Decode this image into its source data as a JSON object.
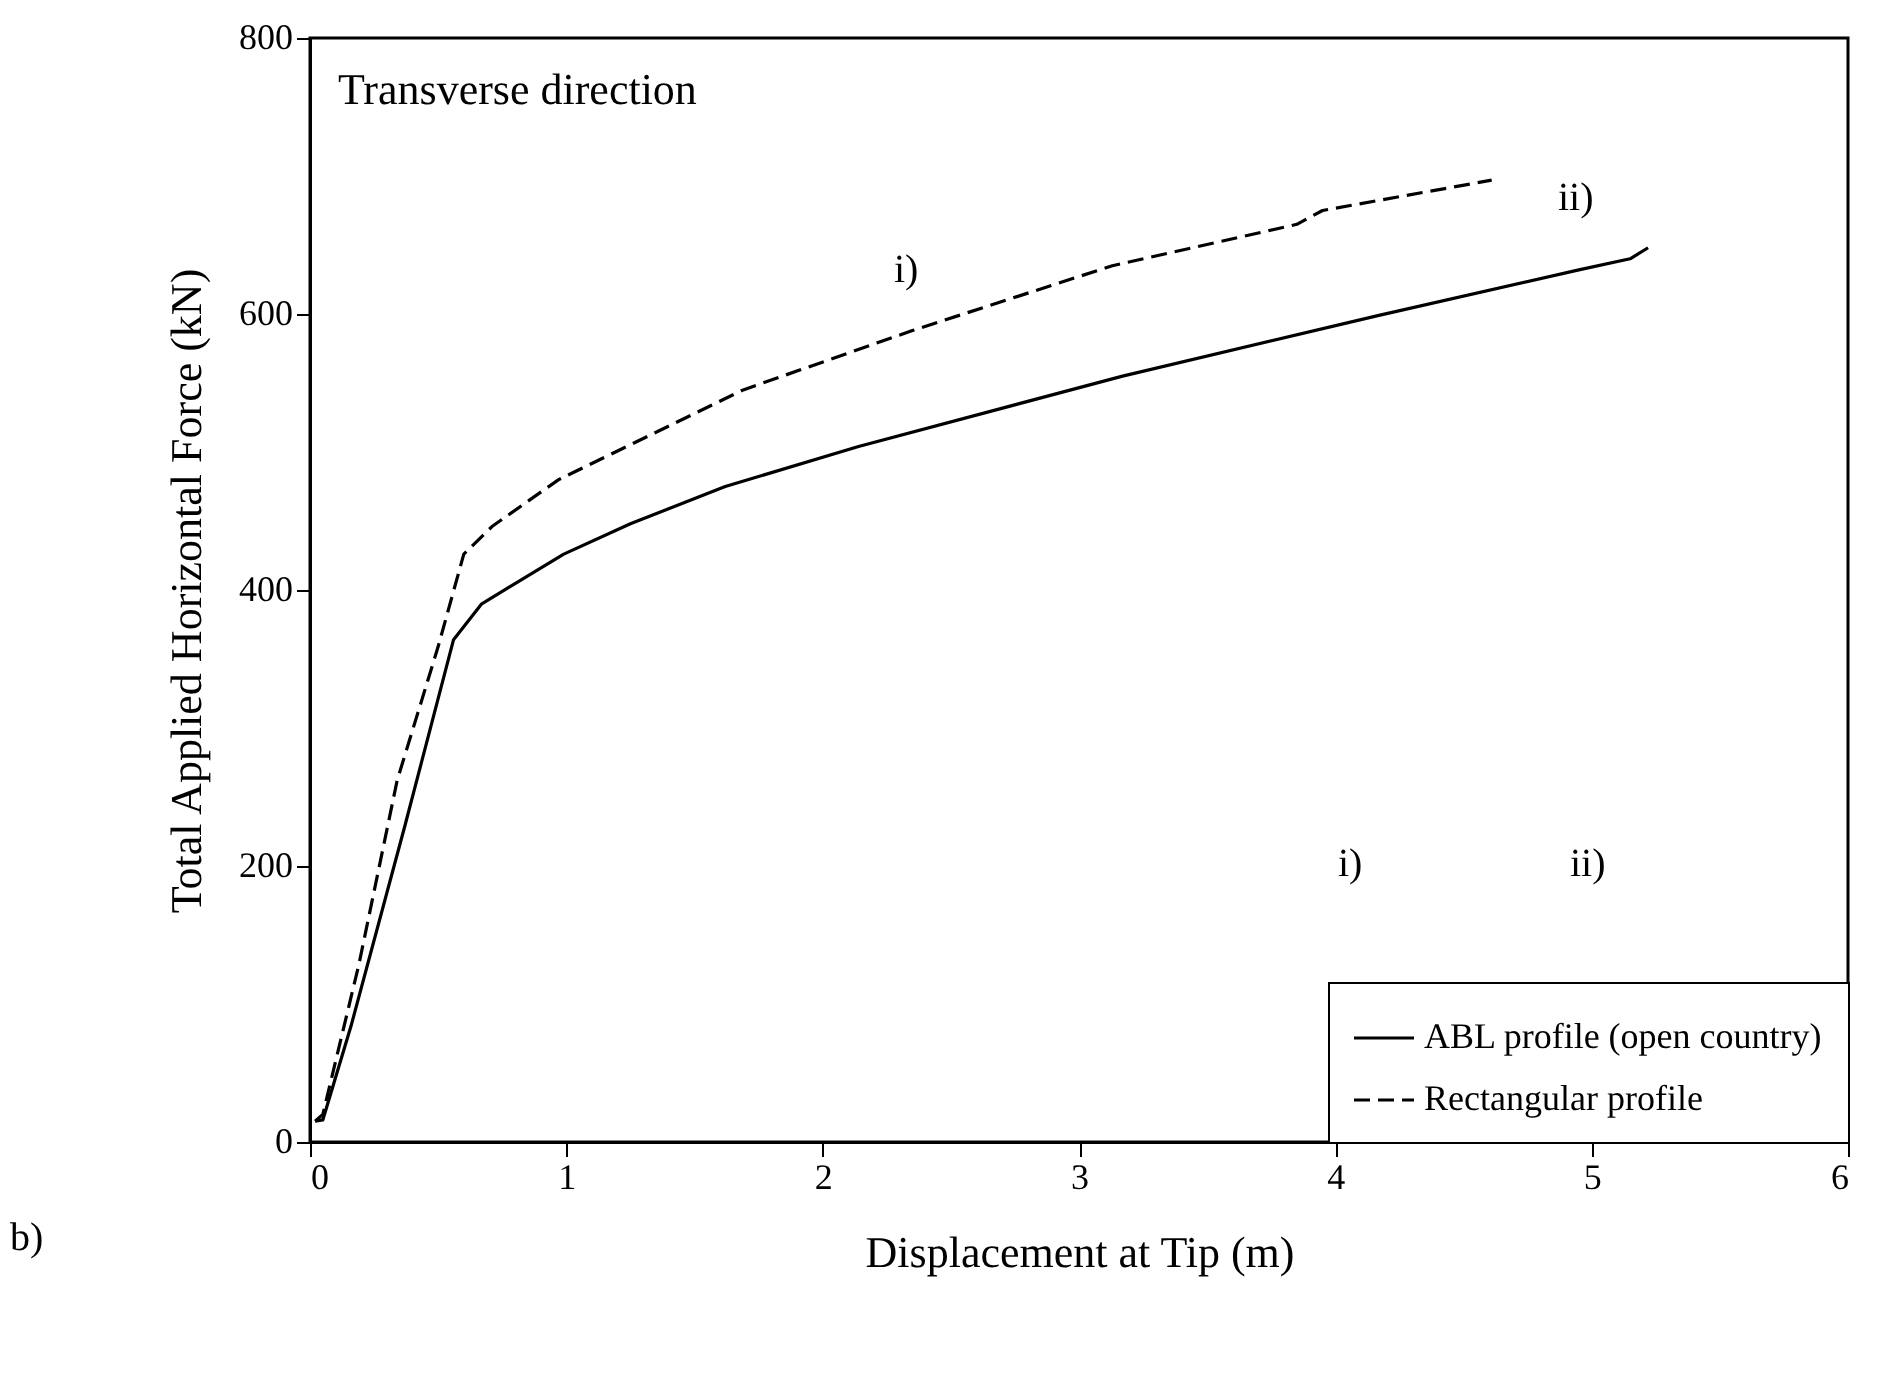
{
  "chart_data": {
    "type": "line",
    "title": "Transverse direction",
    "xlabel": "Displacement at Tip (m)",
    "ylabel": "Total Applied Horizontal Force (kN)",
    "series": [
      {
        "name": "ABL profile (open country)",
        "color": "#000000",
        "line_style": "solid",
        "x": [
          0.02,
          0.05,
          0.16,
          0.37,
          0.56,
          0.67,
          0.99,
          1.25,
          1.62,
          2.14,
          3.17,
          4.17,
          4.95,
          5.15,
          5.22
        ],
        "values": [
          15,
          16,
          84,
          229,
          364,
          390,
          426,
          448,
          475,
          504,
          555,
          599,
          632,
          640,
          648
        ]
      },
      {
        "name": "Rectangular profile",
        "color": "#000000",
        "line_style": "dashed",
        "x": [
          0.02,
          0.05,
          0.19,
          0.34,
          0.5,
          0.6,
          0.71,
          0.97,
          1.69,
          2.35,
          3.13,
          3.85,
          3.95,
          4.61
        ],
        "values": [
          15,
          20,
          128,
          262,
          359,
          426,
          446,
          480,
          545,
          588,
          635,
          665,
          675,
          697
        ]
      }
    ],
    "xlim": [
      0,
      6
    ],
    "xticks": [
      0,
      1,
      2,
      3,
      4,
      5,
      6
    ],
    "ylim": [
      0,
      800
    ],
    "yticks": [
      0,
      200,
      400,
      600,
      800
    ],
    "grid": false,
    "legend": "bottom right",
    "marker": "none",
    "annotations": [
      "i)",
      "ii)",
      "i)",
      "ii)",
      "b)"
    ]
  }
}
